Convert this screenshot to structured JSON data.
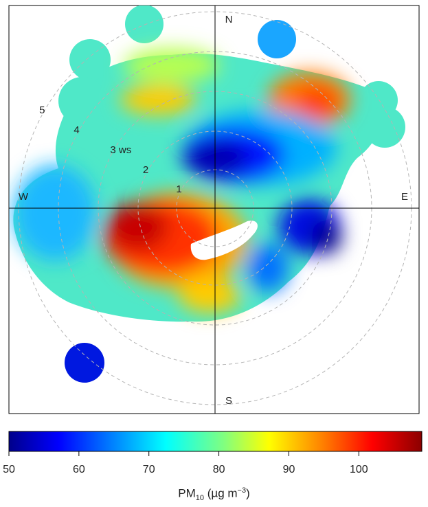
{
  "chart_data": {
    "type": "heatmap",
    "subtype": "polar pollution rose (bivariate polar plot)",
    "compass": {
      "north": "N",
      "south": "S",
      "east": "E",
      "west": "W"
    },
    "radial_axis": {
      "unit_label": "ws",
      "ticks": [
        1,
        2,
        3,
        4,
        5
      ],
      "max": 5.8
    },
    "colorbar": {
      "pollutant": "PM",
      "subscript": "10",
      "unit_prefix": "(µg m",
      "unit_exponent": "−3",
      "unit_suffix": ")",
      "ticks": [
        50,
        60,
        70,
        80,
        90,
        100
      ],
      "range": [
        50,
        109
      ],
      "colors": [
        "#00008b",
        "#0000ff",
        "#0080ff",
        "#00ffff",
        "#80ff80",
        "#ffff00",
        "#ff8000",
        "#ff0000",
        "#8b0000"
      ]
    },
    "hotspots": [
      {
        "direction_deg": 230,
        "ws": 2.3,
        "value": 105
      },
      {
        "direction_deg": 60,
        "ws": 4.2,
        "value": 93
      },
      {
        "direction_deg": 315,
        "ws": 3.9,
        "value": 90
      },
      {
        "direction_deg": 20,
        "ws": 2.0,
        "value": 52
      },
      {
        "direction_deg": 120,
        "ws": 3.8,
        "value": 55
      },
      {
        "direction_deg": 220,
        "ws": 5.6,
        "value": 57
      }
    ]
  }
}
